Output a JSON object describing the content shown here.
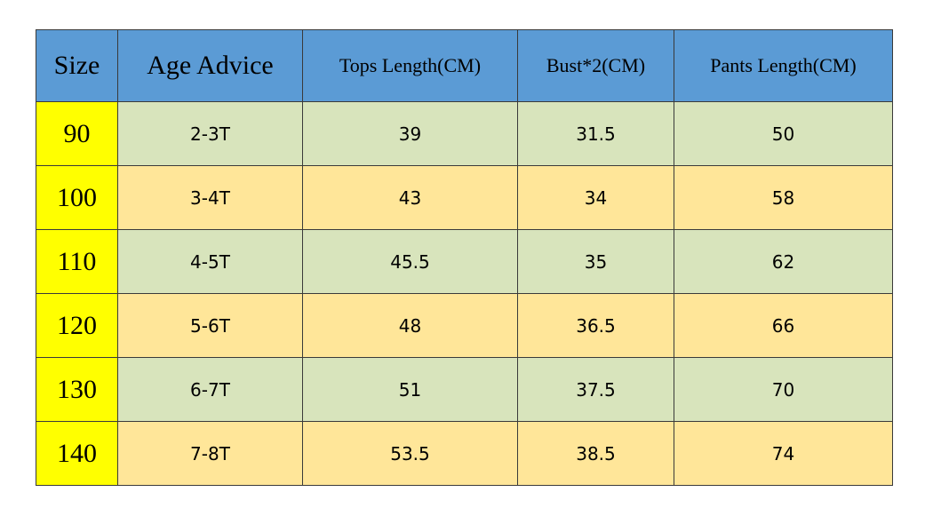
{
  "table": {
    "header": [
      "Size",
      "Age Advice",
      "Tops Length(CM)",
      "Bust*2(CM)",
      "Pants Length(CM)"
    ],
    "rows": [
      [
        90,
        "2-3T",
        39,
        31.5,
        50
      ],
      [
        100,
        "3-4T",
        43,
        34,
        58
      ],
      [
        110,
        "4-5T",
        45.5,
        35,
        62
      ],
      [
        120,
        "5-6T",
        48,
        36.5,
        66
      ],
      [
        130,
        "6-7T",
        51,
        37.5,
        70
      ],
      [
        140,
        "7-8T",
        53.5,
        38.5,
        74
      ]
    ]
  }
}
